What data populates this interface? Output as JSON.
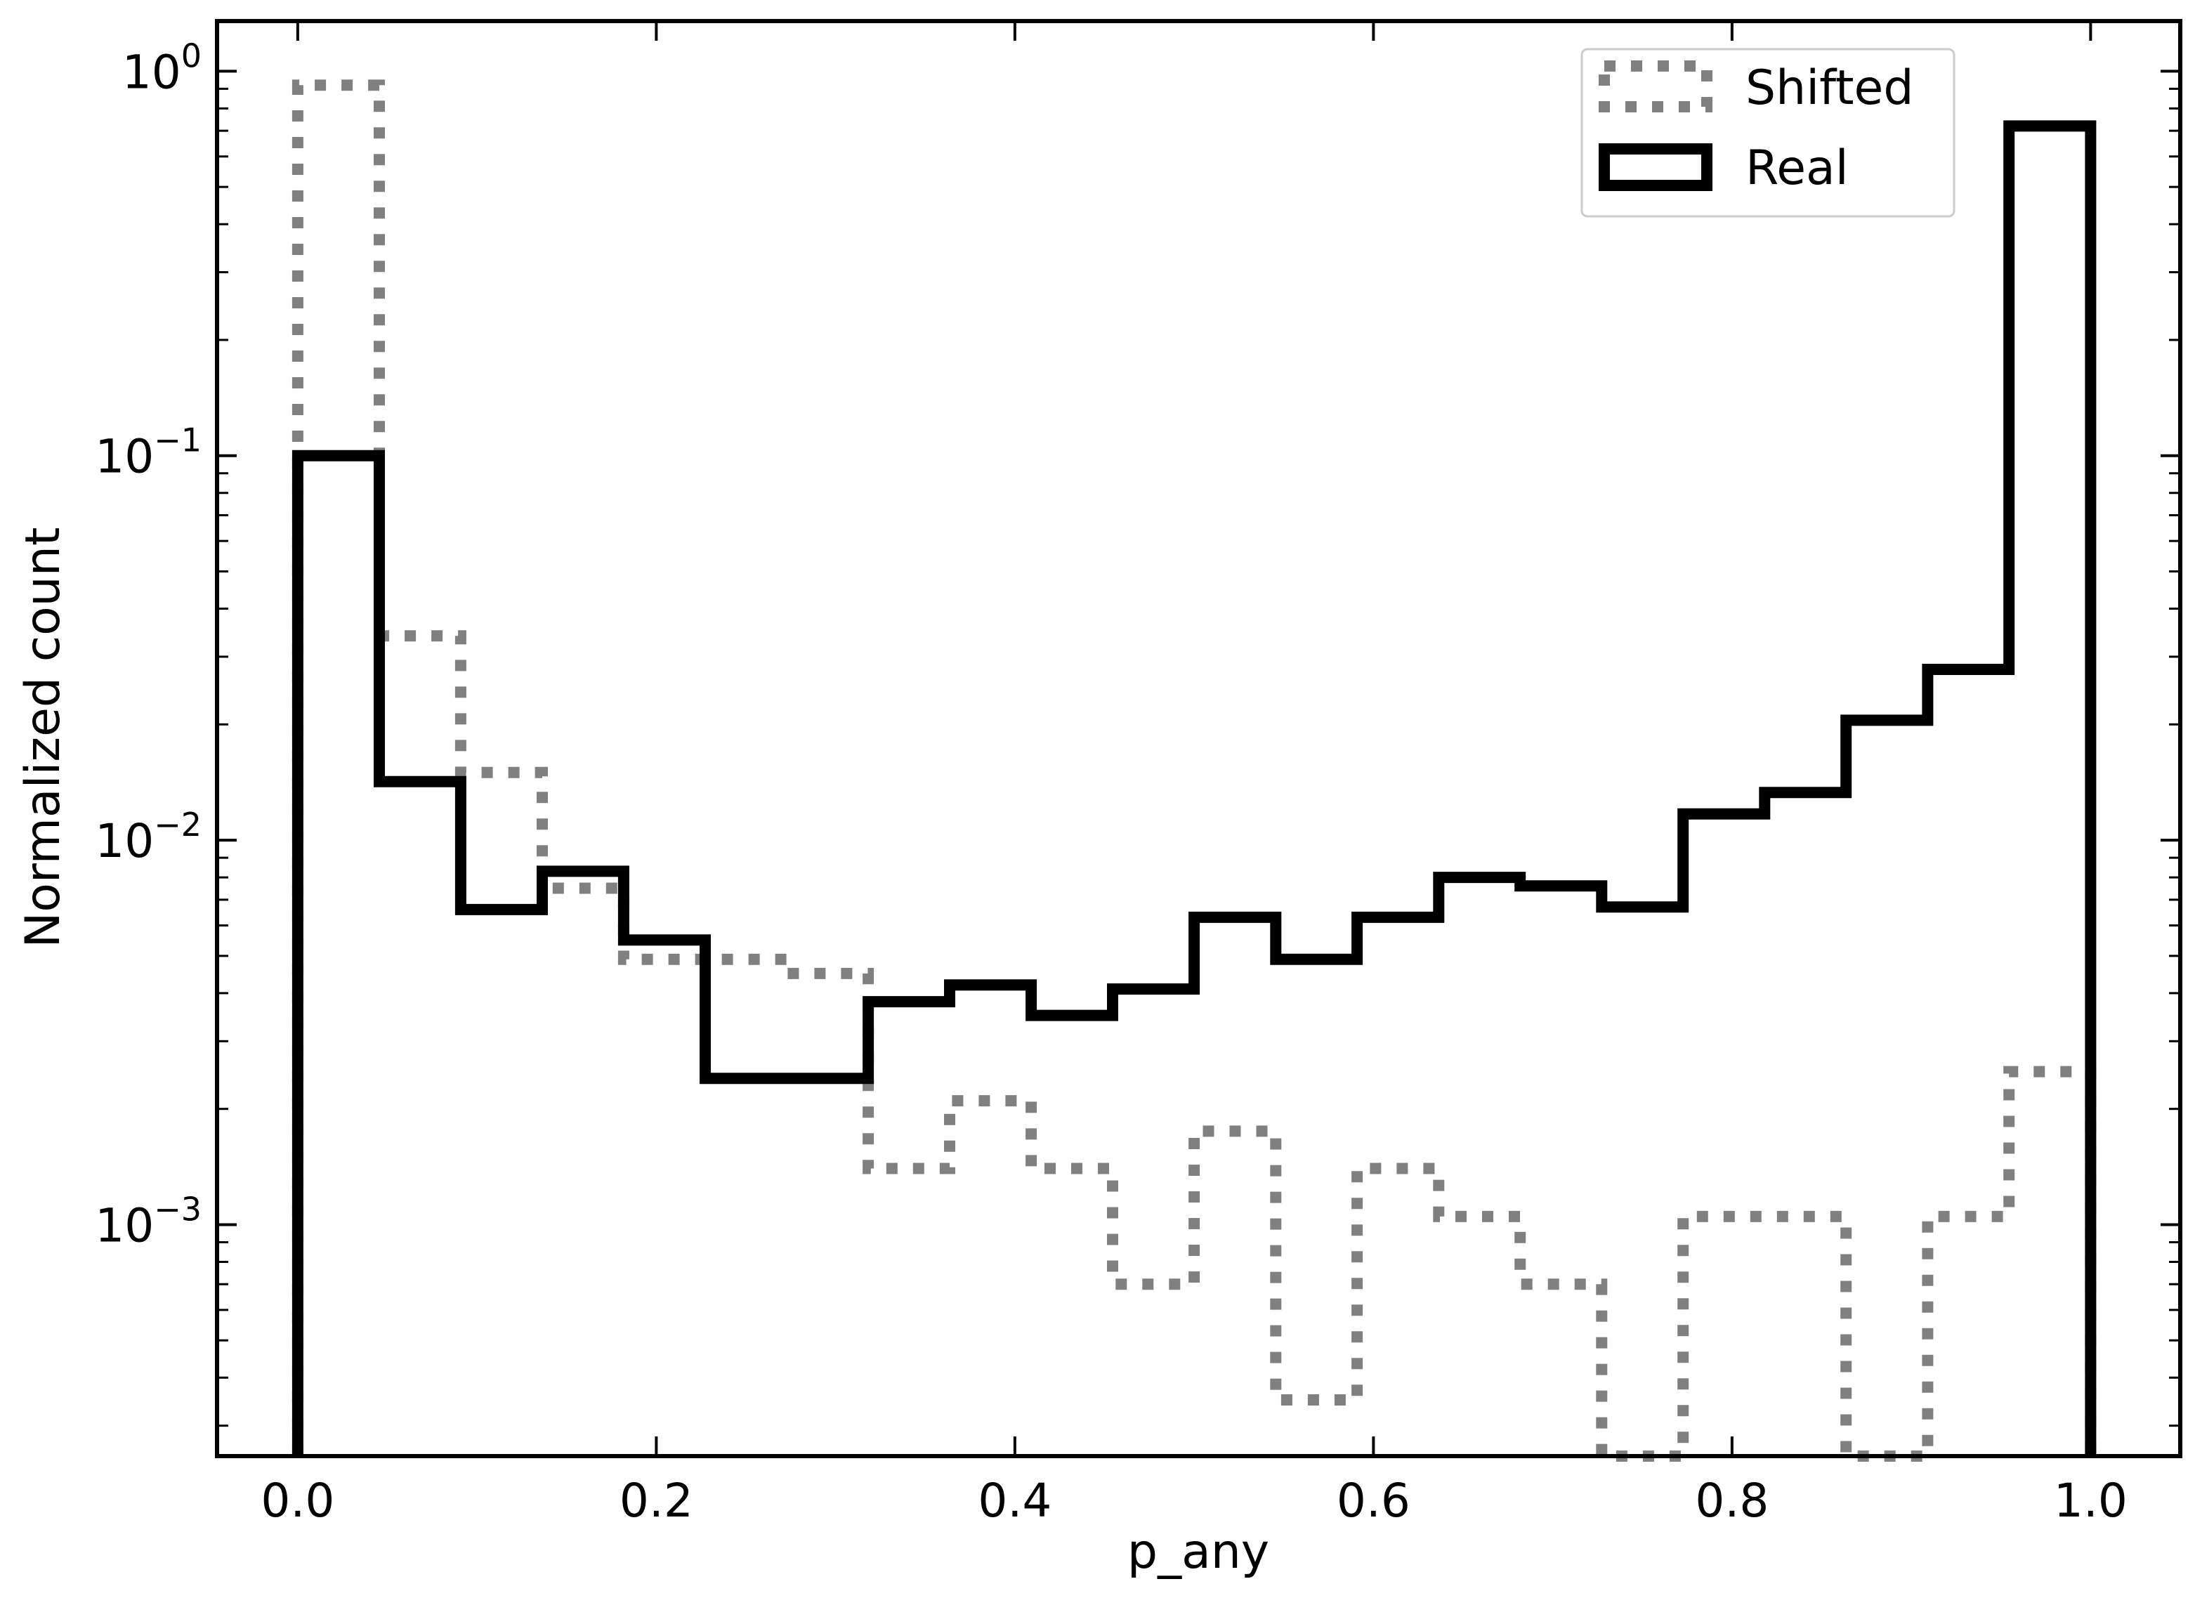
{
  "chart_data": {
    "type": "step-histogram",
    "xlabel": "p_any",
    "ylabel": "Normalized count",
    "xscale": "linear",
    "yscale": "log",
    "xlim": [
      -0.045,
      1.05
    ],
    "ylim": [
      0.00025,
      1.35
    ],
    "xticks": [
      0.0,
      0.2,
      0.4,
      0.6,
      0.8,
      1.0
    ],
    "xtick_labels": [
      "0.0",
      "0.2",
      "0.4",
      "0.6",
      "0.8",
      "1.0"
    ],
    "yticks": [
      {
        "value": 1,
        "base": "10",
        "exp": "0"
      },
      {
        "value": 0.1,
        "base": "10",
        "exp": "−1"
      },
      {
        "value": 0.01,
        "base": "10",
        "exp": "−2"
      },
      {
        "value": 0.001,
        "base": "10",
        "exp": "−3"
      }
    ],
    "bin_edges": [
      0.0,
      0.0455,
      0.0909,
      0.1364,
      0.1818,
      0.2273,
      0.2727,
      0.3182,
      0.3636,
      0.4091,
      0.4545,
      0.5,
      0.5455,
      0.5909,
      0.6364,
      0.6818,
      0.7273,
      0.7727,
      0.8182,
      0.8636,
      0.9091,
      0.9545,
      1.0
    ],
    "series": [
      {
        "name": "Shifted",
        "color": "#808080",
        "style": "dotted",
        "values": [
          0.92,
          0.034,
          0.015,
          0.0075,
          0.0049,
          0.0049,
          0.0045,
          0.0014,
          0.0021,
          0.0014,
          0.0007,
          0.00175,
          0.00035,
          0.0014,
          0.00105,
          0.0007,
          0.00025,
          0.00105,
          0.00105,
          0.00025,
          0.00105,
          0.0025
        ]
      },
      {
        "name": "Real",
        "color": "#000000",
        "style": "solid",
        "values": [
          0.1,
          0.0142,
          0.0066,
          0.0083,
          0.0055,
          0.0024,
          0.0024,
          0.0038,
          0.0042,
          0.0035,
          0.0041,
          0.0063,
          0.0049,
          0.0063,
          0.008,
          0.0076,
          0.0067,
          0.0117,
          0.0133,
          0.0205,
          0.0278,
          0.72
        ]
      }
    ],
    "legend": {
      "position": "top-right",
      "entries": [
        "Shifted",
        "Real"
      ]
    }
  }
}
